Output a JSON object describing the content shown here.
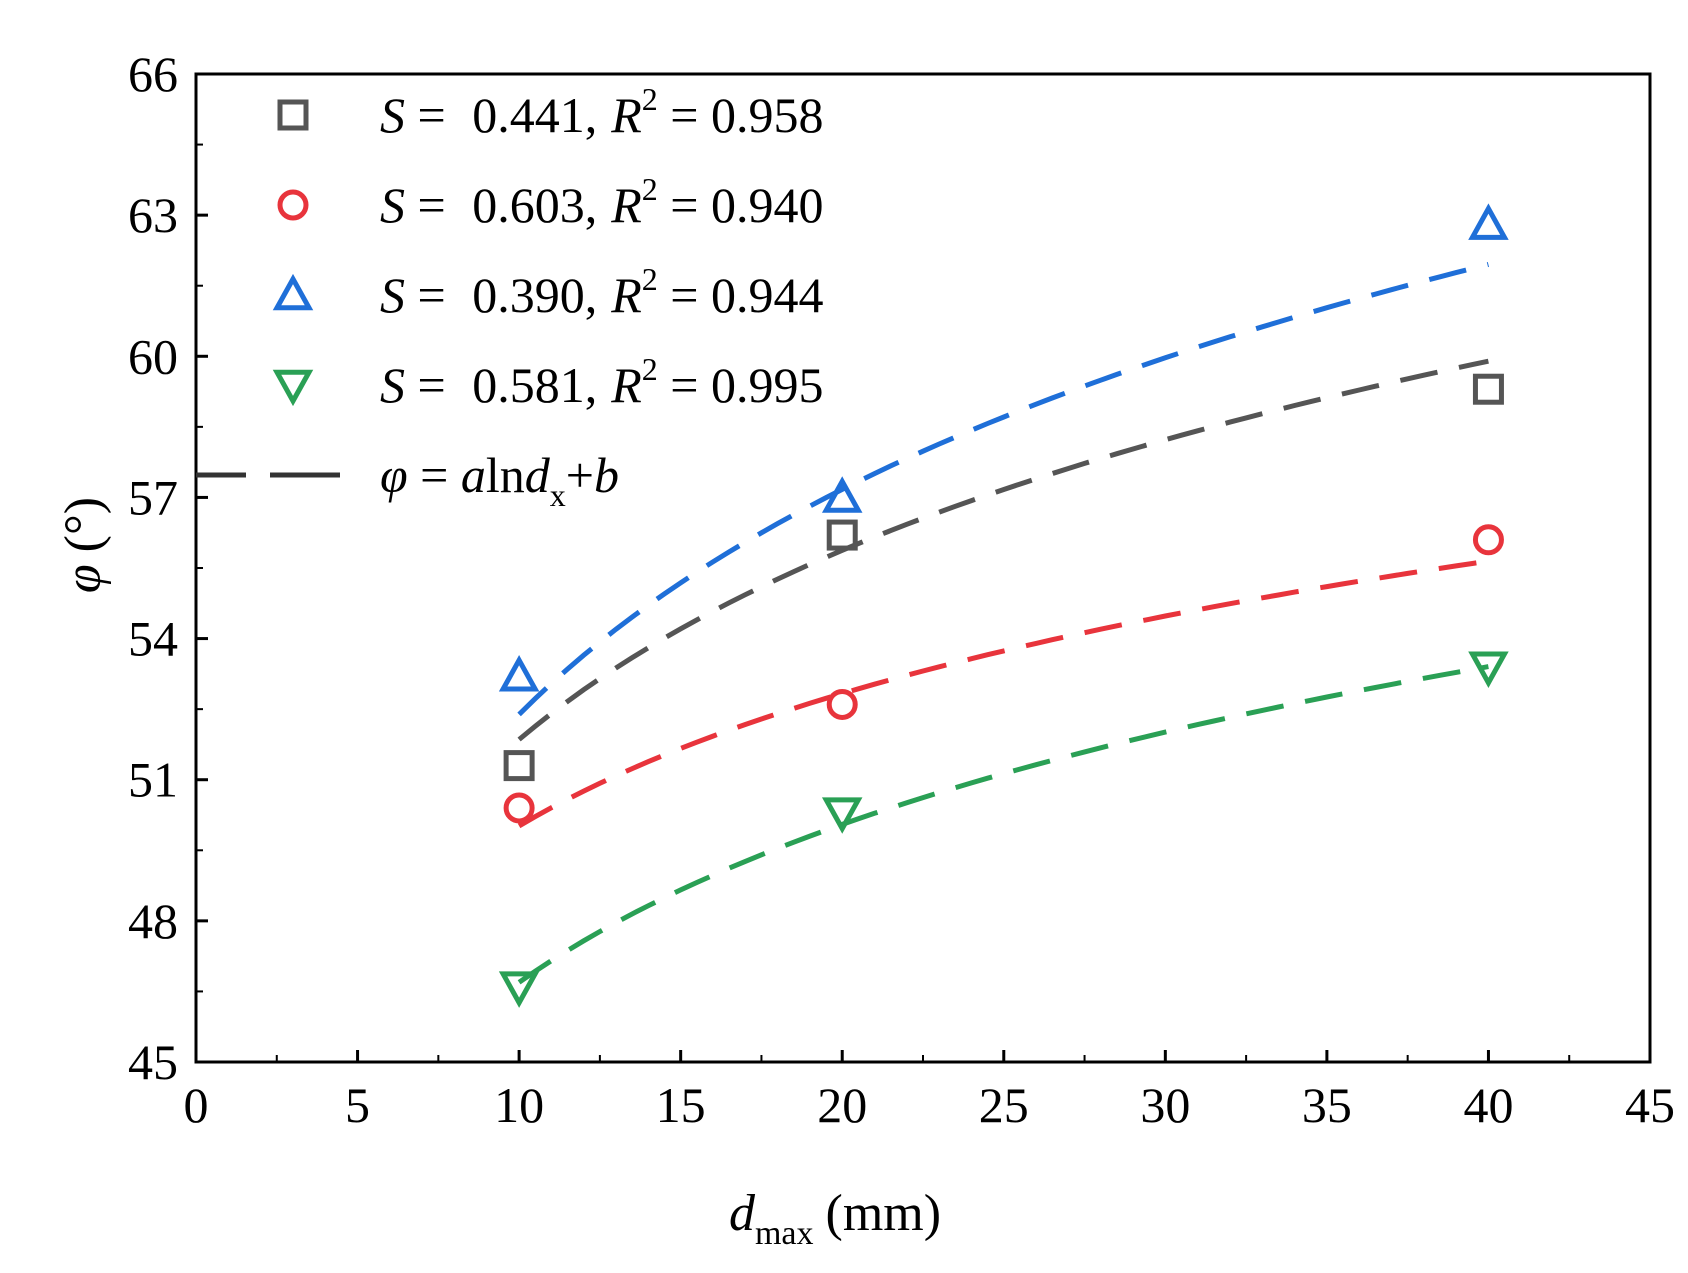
{
  "chart_data": {
    "type": "scatter",
    "title": "",
    "xlabel": {
      "main": "d",
      "sub": "max",
      "unit": "(mm)"
    },
    "ylabel": {
      "symbol": "φ",
      "unit": "(°)"
    },
    "xlim": [
      0,
      45
    ],
    "ylim": [
      45,
      66
    ],
    "xticks": [
      0,
      5,
      10,
      15,
      20,
      25,
      30,
      35,
      40,
      45
    ],
    "yticks": [
      45,
      48,
      51,
      54,
      57,
      60,
      63,
      66
    ],
    "xtick_labels": [
      "0",
      "5",
      "10",
      "15",
      "20",
      "25",
      "30",
      "35",
      "40",
      "45"
    ],
    "ytick_labels": [
      "45",
      "48",
      "51",
      "54",
      "57",
      "60",
      "63",
      "66"
    ],
    "grid": false,
    "legend_position": "top-left",
    "series": [
      {
        "name": "S = 0.441, R2 = 0.958",
        "S_label": "S",
        "eq": " = ",
        "S_value": "0.441,",
        "R_label": "R",
        "R_sup": "2",
        "R_eq": " = ",
        "R_value": "0.958",
        "marker": "square",
        "color": "#555555",
        "x": [
          10,
          20,
          40
        ],
        "y": [
          51.3,
          56.2,
          59.3
        ],
        "fit": {
          "a": 5.8,
          "b": 38.5
        }
      },
      {
        "name": "S = 0.603, R2 = 0.940",
        "S_label": "S",
        "eq": " = ",
        "S_value": "0.603,",
        "R_label": "R",
        "R_sup": "2",
        "R_eq": " = ",
        "R_value": "0.940",
        "marker": "circle",
        "color": "#e8343c",
        "x": [
          10,
          20,
          40
        ],
        "y": [
          50.4,
          52.6,
          56.1
        ],
        "fit": {
          "a": 4.06,
          "b": 40.67
        }
      },
      {
        "name": "S = 0.390, R2 = 0.944",
        "S_label": "S",
        "eq": " = ",
        "S_value": "0.390,",
        "R_label": "R",
        "R_sup": "2",
        "R_eq": " = ",
        "R_value": "0.944",
        "marker": "triangle-up",
        "color": "#1f6fd8",
        "x": [
          10,
          20,
          40
        ],
        "y": [
          53.2,
          57.0,
          62.8
        ],
        "fit": {
          "a": 6.9,
          "b": 36.5
        }
      },
      {
        "name": "S = 0.581, R2 = 0.995",
        "S_label": "S",
        "eq": " = ",
        "S_value": "0.581,",
        "R_label": "R",
        "R_sup": "2",
        "R_eq": " = ",
        "R_value": "0.995",
        "marker": "triangle-down",
        "color": "#2aa055",
        "x": [
          10,
          20,
          40
        ],
        "y": [
          46.6,
          50.3,
          53.4
        ],
        "fit": {
          "a": 4.84,
          "b": 35.55
        }
      }
    ],
    "fit_legend": {
      "phi": "φ",
      "eq": " = ",
      "a": "a",
      "ln": "ln",
      "d": "d",
      "sub": "x",
      "plus": "+",
      "b": "b",
      "line_color": "#333333"
    }
  }
}
